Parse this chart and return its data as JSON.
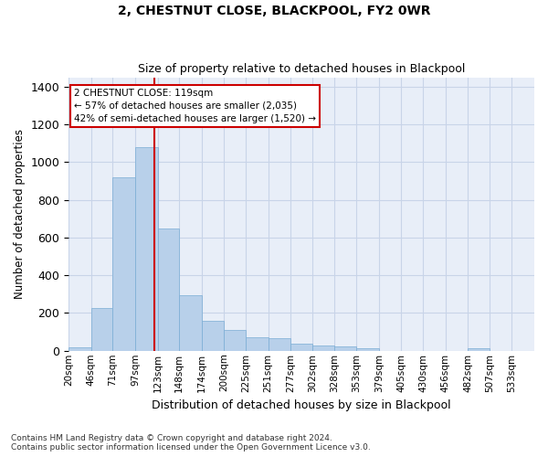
{
  "title": "2, CHESTNUT CLOSE, BLACKPOOL, FY2 0WR",
  "subtitle": "Size of property relative to detached houses in Blackpool",
  "xlabel": "Distribution of detached houses by size in Blackpool",
  "ylabel": "Number of detached properties",
  "bar_color": "#b8d0ea",
  "bar_edge_color": "#7aadd4",
  "grid_color": "#c8d4e8",
  "background_color": "#e8eef8",
  "property_line_color": "#cc0000",
  "property_size": 119,
  "annotation_text": "2 CHESTNUT CLOSE: 119sqm\n← 57% of detached houses are smaller (2,035)\n42% of semi-detached houses are larger (1,520) →",
  "annotation_box_color": "#cc0000",
  "footnote1": "Contains HM Land Registry data © Crown copyright and database right 2024.",
  "footnote2": "Contains public sector information licensed under the Open Government Licence v3.0.",
  "bin_labels": [
    "20sqm",
    "46sqm",
    "71sqm",
    "97sqm",
    "123sqm",
    "148sqm",
    "174sqm",
    "200sqm",
    "225sqm",
    "251sqm",
    "277sqm",
    "302sqm",
    "328sqm",
    "353sqm",
    "379sqm",
    "405sqm",
    "430sqm",
    "456sqm",
    "482sqm",
    "507sqm",
    "533sqm"
  ],
  "bin_edges": [
    20,
    46,
    71,
    97,
    123,
    148,
    174,
    200,
    225,
    251,
    277,
    302,
    328,
    353,
    379,
    405,
    430,
    456,
    482,
    507,
    533,
    559
  ],
  "bar_heights": [
    18,
    225,
    920,
    1080,
    650,
    295,
    160,
    108,
    70,
    68,
    38,
    26,
    22,
    15,
    0,
    0,
    0,
    0,
    12,
    0,
    0
  ],
  "ylim": [
    0,
    1450
  ],
  "yticks": [
    0,
    200,
    400,
    600,
    800,
    1000,
    1200,
    1400
  ]
}
